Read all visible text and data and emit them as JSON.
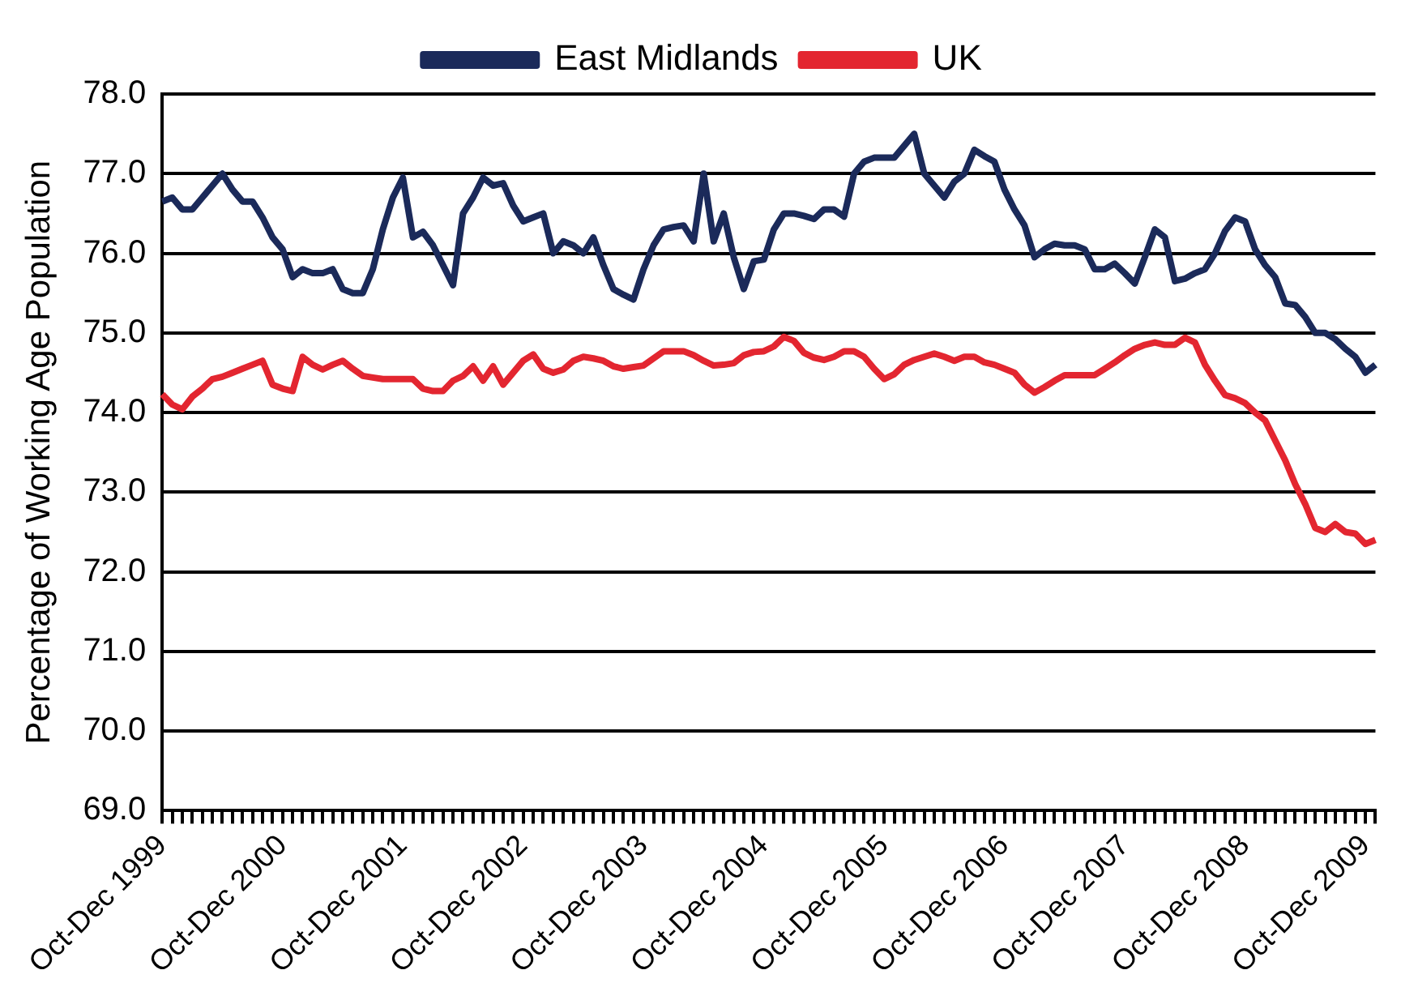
{
  "chart_data": {
    "type": "line",
    "ylabel": "Percentage of Working Age Population",
    "categories": [
      "Oct-Dec 1999",
      null,
      null,
      null,
      null,
      null,
      null,
      null,
      null,
      null,
      null,
      null,
      "Oct-Dec 2000",
      null,
      null,
      null,
      null,
      null,
      null,
      null,
      null,
      null,
      null,
      null,
      "Oct-Dec 2001",
      null,
      null,
      null,
      null,
      null,
      null,
      null,
      null,
      null,
      null,
      null,
      "Oct-Dec 2002",
      null,
      null,
      null,
      null,
      null,
      null,
      null,
      null,
      null,
      null,
      null,
      "Oct-Dec 2003",
      null,
      null,
      null,
      null,
      null,
      null,
      null,
      null,
      null,
      null,
      null,
      "Oct-Dec 2004",
      null,
      null,
      null,
      null,
      null,
      null,
      null,
      null,
      null,
      null,
      null,
      "Oct-Dec 2005",
      null,
      null,
      null,
      null,
      null,
      null,
      null,
      null,
      null,
      null,
      null,
      "Oct-Dec 2006",
      null,
      null,
      null,
      null,
      null,
      null,
      null,
      null,
      null,
      null,
      null,
      "Oct-Dec 2007",
      null,
      null,
      null,
      null,
      null,
      null,
      null,
      null,
      null,
      null,
      null,
      "Oct-Dec 2008",
      null,
      null,
      null,
      null,
      null,
      null,
      null,
      null,
      null,
      null,
      null,
      "Oct-Dec 2009",
      null
    ],
    "series": [
      {
        "name": "East Midlands",
        "color": "#1b2a5a",
        "values": [
          76.65,
          76.7,
          76.55,
          76.55,
          76.7,
          76.85,
          77.0,
          76.8,
          76.65,
          76.65,
          76.45,
          76.2,
          76.05,
          75.7,
          75.8,
          75.75,
          75.75,
          75.8,
          75.55,
          75.5,
          75.5,
          75.8,
          76.3,
          76.7,
          76.95,
          76.2,
          76.27,
          76.1,
          75.85,
          75.6,
          76.5,
          76.7,
          76.95,
          76.85,
          76.88,
          76.6,
          76.4,
          76.45,
          76.5,
          76.0,
          76.15,
          76.1,
          76.0,
          76.2,
          75.85,
          75.55,
          75.48,
          75.42,
          75.8,
          76.1,
          76.3,
          76.33,
          76.35,
          76.15,
          77.0,
          76.15,
          76.5,
          75.95,
          75.55,
          75.9,
          75.92,
          76.3,
          76.5,
          76.5,
          76.47,
          76.43,
          76.55,
          76.55,
          76.46,
          77.0,
          77.15,
          77.2,
          77.2,
          77.2,
          77.35,
          77.5,
          77.0,
          76.85,
          76.7,
          76.9,
          77.0,
          77.3,
          77.22,
          77.15,
          76.8,
          76.55,
          76.35,
          75.95,
          76.05,
          76.12,
          76.1,
          76.1,
          76.05,
          75.8,
          75.8,
          75.87,
          75.75,
          75.62,
          75.95,
          76.3,
          76.2,
          75.65,
          75.68,
          75.75,
          75.8,
          76.0,
          76.28,
          76.45,
          76.4,
          76.05,
          75.85,
          75.7,
          75.37,
          75.35,
          75.2,
          75.0,
          75.0,
          74.92,
          74.8,
          74.7,
          74.5,
          74.6
        ]
      },
      {
        "name": "UK",
        "color": "#e32630",
        "values": [
          74.23,
          74.1,
          74.04,
          74.2,
          74.3,
          74.42,
          74.45,
          74.5,
          74.55,
          74.6,
          74.65,
          74.35,
          74.3,
          74.27,
          74.7,
          74.6,
          74.54,
          74.6,
          74.65,
          74.55,
          74.46,
          74.44,
          74.42,
          74.42,
          74.42,
          74.42,
          74.3,
          74.27,
          74.27,
          74.4,
          74.46,
          74.58,
          74.4,
          74.58,
          74.35,
          74.5,
          74.65,
          74.73,
          74.55,
          74.5,
          74.54,
          74.65,
          74.7,
          74.68,
          74.65,
          74.58,
          74.55,
          74.57,
          74.59,
          74.68,
          74.77,
          74.77,
          74.77,
          74.72,
          74.65,
          74.59,
          74.6,
          74.62,
          74.72,
          74.76,
          74.77,
          74.83,
          74.95,
          74.9,
          74.75,
          74.69,
          74.66,
          74.7,
          74.77,
          74.77,
          74.7,
          74.55,
          74.42,
          74.48,
          74.6,
          74.66,
          74.7,
          74.74,
          74.7,
          74.65,
          74.7,
          74.7,
          74.63,
          74.6,
          74.55,
          74.5,
          74.35,
          74.25,
          74.32,
          74.4,
          74.47,
          74.47,
          74.47,
          74.47,
          74.55,
          74.63,
          74.72,
          74.8,
          74.85,
          74.88,
          74.85,
          74.85,
          74.94,
          74.88,
          74.6,
          74.4,
          74.22,
          74.18,
          74.12,
          74.0,
          73.9,
          73.65,
          73.4,
          73.1,
          72.85,
          72.55,
          72.5,
          72.6,
          72.5,
          72.48,
          72.35,
          72.4
        ]
      }
    ],
    "ylim": [
      69,
      78
    ],
    "yticks": [
      {
        "value": 69,
        "label": "69.0"
      },
      {
        "value": 70,
        "label": "70.0"
      },
      {
        "value": 71,
        "label": "71.0"
      },
      {
        "value": 72,
        "label": "72.0"
      },
      {
        "value": 73,
        "label": "73.0"
      },
      {
        "value": 74,
        "label": "74.0"
      },
      {
        "value": 75,
        "label": "75.0"
      },
      {
        "value": 76,
        "label": "76.0"
      },
      {
        "value": 77,
        "label": "77.0"
      },
      {
        "value": 78,
        "label": "78.0"
      }
    ],
    "grid": "y",
    "legend": "top",
    "marker": "none",
    "line_style": "solid"
  }
}
